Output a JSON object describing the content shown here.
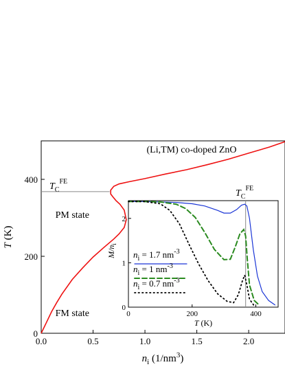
{
  "chart_data": [
    {
      "type": "line",
      "xlabel": "n_i (1/nm^3)",
      "xlabel_parts": {
        "symbol": "n",
        "sub": "i",
        "unit_pre": " (1/nm",
        "unit_sup": "3",
        "unit_post": ")"
      },
      "ylabel": "T (K)",
      "ylabel_parts": {
        "symbol": "T",
        "unit": " (K)"
      },
      "xlim": [
        0,
        2.35
      ],
      "ylim": [
        0,
        500
      ],
      "x_ticks": [
        0,
        0.5,
        1,
        1.5,
        2
      ],
      "x_tick_labels": [
        "0.0",
        "0.5",
        "1.0",
        "1.5",
        "2.0"
      ],
      "y_ticks": [
        0,
        200,
        400
      ],
      "y_tick_labels": [
        "0",
        "200",
        "400"
      ],
      "grid": false,
      "colors": {
        "curve": "#ee1111",
        "reference_line": "#888888",
        "frame": "#000000"
      },
      "annotations": [
        {
          "text": "(Li,TM) co-doped ZnO",
          "x": 1.45,
          "y": 470
        },
        {
          "text": "PM state",
          "x": 0.3,
          "y": 300
        },
        {
          "text": "FM state",
          "x": 0.3,
          "y": 45
        }
      ],
      "reference_line": {
        "y": 368,
        "x_range": [
          0,
          0.66
        ],
        "label_main": "T",
        "label_sub": "C",
        "label_sup": "FE"
      },
      "series": [
        {
          "x": [
            0.0,
            0.05,
            0.1,
            0.15,
            0.2,
            0.3,
            0.4,
            0.5,
            0.6,
            0.7,
            0.75,
            0.8,
            0.82,
            0.8,
            0.76,
            0.72,
            0.69,
            0.67,
            0.67,
            0.7,
            0.75,
            0.85,
            1.0,
            1.2,
            1.4,
            1.6,
            1.8,
            2.0,
            2.2,
            2.35
          ],
          "y": [
            0,
            28,
            56,
            80,
            102,
            140,
            170,
            198,
            222,
            245,
            258,
            275,
            295,
            320,
            335,
            345,
            355,
            362,
            372,
            382,
            388,
            394,
            402,
            414,
            425,
            438,
            452,
            468,
            484,
            498
          ]
        }
      ]
    },
    {
      "type": "line",
      "xlabel": "T (K)",
      "xlabel_parts": {
        "symbol": "T",
        "unit": " (K)"
      },
      "ylabel": "M/n_i",
      "ylabel_parts": {
        "symbol": "M/n",
        "sub": "i"
      },
      "xlim": [
        0,
        470
      ],
      "ylim": [
        0,
        2.4
      ],
      "x_ticks": [
        0,
        200,
        400
      ],
      "x_tick_labels": [
        "0",
        "200",
        "400"
      ],
      "y_ticks": [
        0,
        1,
        2
      ],
      "y_tick_labels": [
        "0",
        "1",
        "2"
      ],
      "grid": false,
      "reference_line": {
        "x": 368,
        "label_main": "T",
        "label_sub": "C",
        "label_sup": "FE"
      },
      "series": [
        {
          "legend_parts": {
            "pre": "n",
            "sub": "i",
            "post": " = 1.7 nm",
            "sup": "-3"
          },
          "style": "solid",
          "color": "#1a35d6",
          "x": [
            0,
            50,
            100,
            150,
            200,
            240,
            280,
            300,
            320,
            340,
            355,
            365,
            372,
            380,
            392,
            405,
            420,
            440,
            460
          ],
          "y": [
            2.38,
            2.38,
            2.37,
            2.36,
            2.33,
            2.28,
            2.18,
            2.12,
            2.12,
            2.2,
            2.3,
            2.32,
            2.28,
            2.0,
            1.3,
            0.7,
            0.35,
            0.15,
            0.05
          ]
        },
        {
          "legend_parts": {
            "pre": "n",
            "sub": "i",
            "post": " = 1 nm",
            "sup": "-3"
          },
          "style": "dashed",
          "color": "#2a8a1f",
          "x": [
            0,
            50,
            100,
            150,
            180,
            210,
            240,
            270,
            300,
            320,
            335,
            350,
            362,
            368,
            373,
            380,
            395,
            410
          ],
          "y": [
            2.38,
            2.38,
            2.37,
            2.32,
            2.22,
            2.02,
            1.68,
            1.3,
            1.07,
            1.08,
            1.35,
            1.65,
            1.75,
            1.6,
            1.1,
            0.5,
            0.15,
            0.05
          ]
        },
        {
          "legend_parts": {
            "pre": "n",
            "sub": "i",
            "post": " = 0.7 nm",
            "sup": "-3"
          },
          "style": "dotted",
          "color": "#000000",
          "x": [
            0,
            50,
            100,
            130,
            160,
            190,
            220,
            250,
            280,
            310,
            330,
            345,
            358,
            365,
            372,
            380,
            395
          ],
          "y": [
            2.38,
            2.38,
            2.33,
            2.18,
            1.88,
            1.42,
            0.98,
            0.6,
            0.3,
            0.13,
            0.1,
            0.28,
            0.6,
            0.72,
            0.5,
            0.18,
            0.03
          ]
        }
      ]
    }
  ]
}
